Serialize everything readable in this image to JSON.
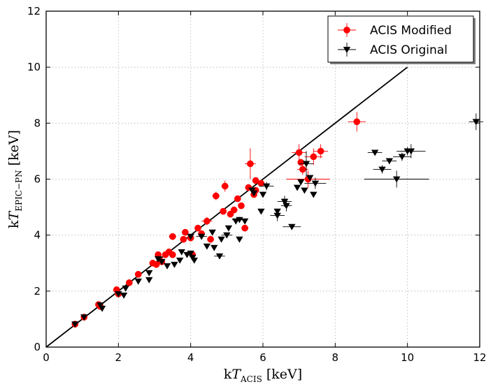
{
  "chart_data": {
    "type": "scatter",
    "title": "",
    "xlabel": {
      "prefix": "k",
      "var": "T",
      "sub": "ACIS",
      "unit": "[keV]"
    },
    "ylabel": {
      "prefix": "k",
      "var": "T",
      "sub": "EPIC−PN",
      "unit": "[keV]"
    },
    "xlim": [
      0,
      12
    ],
    "ylim": [
      0,
      12
    ],
    "xticks": [
      0,
      2,
      4,
      6,
      8,
      10,
      12
    ],
    "yticks": [
      0,
      2,
      4,
      6,
      8,
      10,
      12
    ],
    "grid": true,
    "legend_position": "top-right",
    "reference_line": {
      "name": "one-to-one line",
      "x": [
        0,
        10
      ],
      "y": [
        0,
        10
      ],
      "color": "#000000"
    },
    "series": [
      {
        "name": "ACIS Modified",
        "marker": "circle",
        "color": "#ff0000",
        "points": [
          {
            "x": 0.8,
            "y": 0.82
          },
          {
            "x": 1.05,
            "y": 1.07
          },
          {
            "x": 1.45,
            "y": 1.52
          },
          {
            "x": 1.5,
            "y": 1.45
          },
          {
            "x": 1.95,
            "y": 2.05
          },
          {
            "x": 2.0,
            "y": 1.9
          },
          {
            "x": 2.3,
            "y": 2.3
          },
          {
            "x": 2.55,
            "y": 2.6
          },
          {
            "x": 2.95,
            "y": 3.0
          },
          {
            "x": 3.05,
            "y": 2.95
          },
          {
            "x": 3.1,
            "y": 3.3
          },
          {
            "x": 3.2,
            "y": 3.05
          },
          {
            "x": 3.3,
            "y": 3.3
          },
          {
            "x": 3.4,
            "y": 3.4
          },
          {
            "x": 3.5,
            "y": 3.95,
            "xerr": 0.1,
            "yerr": 0.1
          },
          {
            "x": 3.5,
            "y": 3.3
          },
          {
            "x": 3.8,
            "y": 3.85
          },
          {
            "x": 3.85,
            "y": 4.1
          },
          {
            "x": 4.0,
            "y": 3.9
          },
          {
            "x": 4.05,
            "y": 3.3
          },
          {
            "x": 4.2,
            "y": 4.25
          },
          {
            "x": 4.3,
            "y": 4.05
          },
          {
            "x": 4.45,
            "y": 4.5,
            "xerr": 0.15,
            "yerr": 0.15
          },
          {
            "x": 4.55,
            "y": 3.85
          },
          {
            "x": 4.7,
            "y": 5.4,
            "xerr": 0.1,
            "yerr": 0.15
          },
          {
            "x": 4.9,
            "y": 4.85
          },
          {
            "x": 4.95,
            "y": 5.75,
            "xerr": 0.1,
            "yerr": 0.2
          },
          {
            "x": 5.1,
            "y": 4.75
          },
          {
            "x": 5.2,
            "y": 4.9
          },
          {
            "x": 5.3,
            "y": 5.3
          },
          {
            "x": 5.4,
            "y": 5.05
          },
          {
            "x": 5.5,
            "y": 4.25,
            "xerr": 0.1,
            "yerr": 0.1
          },
          {
            "x": 5.6,
            "y": 5.7
          },
          {
            "x": 5.65,
            "y": 6.55,
            "xerr": 0.15,
            "yerr": 0.55
          },
          {
            "x": 5.75,
            "y": 5.45
          },
          {
            "x": 5.8,
            "y": 5.6
          },
          {
            "x": 5.8,
            "y": 5.95
          },
          {
            "x": 5.95,
            "y": 5.85
          },
          {
            "x": 7.0,
            "y": 6.95,
            "xerr": 0.2,
            "yerr": 0.3
          },
          {
            "x": 7.05,
            "y": 6.6
          },
          {
            "x": 7.1,
            "y": 6.35,
            "xerr": 0.15,
            "yerr": 0.2
          },
          {
            "x": 7.25,
            "y": 6.0,
            "xerr": 0.6,
            "yerr": 0.3
          },
          {
            "x": 7.4,
            "y": 6.8,
            "xerr": 0.25,
            "yerr": 0.3
          },
          {
            "x": 7.6,
            "y": 7.0,
            "xerr": 0.2,
            "yerr": 0.25
          },
          {
            "x": 8.6,
            "y": 8.05,
            "xerr": 0.25,
            "yerr": 0.35
          }
        ]
      },
      {
        "name": "ACIS Original",
        "marker": "triangle_down",
        "color": "#000000",
        "points": [
          {
            "x": 0.8,
            "y": 0.82
          },
          {
            "x": 1.05,
            "y": 1.07
          },
          {
            "x": 1.5,
            "y": 1.5
          },
          {
            "x": 1.55,
            "y": 1.38
          },
          {
            "x": 2.0,
            "y": 1.9
          },
          {
            "x": 2.15,
            "y": 1.85
          },
          {
            "x": 2.2,
            "y": 2.1
          },
          {
            "x": 2.55,
            "y": 2.35
          },
          {
            "x": 2.85,
            "y": 2.65
          },
          {
            "x": 2.85,
            "y": 2.4
          },
          {
            "x": 3.1,
            "y": 3.15
          },
          {
            "x": 3.2,
            "y": 3.05
          },
          {
            "x": 3.35,
            "y": 2.9
          },
          {
            "x": 3.55,
            "y": 2.95
          },
          {
            "x": 3.7,
            "y": 3.1
          },
          {
            "x": 3.75,
            "y": 3.4
          },
          {
            "x": 3.9,
            "y": 3.3
          },
          {
            "x": 4.0,
            "y": 3.95
          },
          {
            "x": 4.0,
            "y": 3.35
          },
          {
            "x": 4.05,
            "y": 3.2
          },
          {
            "x": 4.1,
            "y": 3.1
          },
          {
            "x": 4.3,
            "y": 3.95,
            "xerr": 0.15,
            "yerr": 0.1
          },
          {
            "x": 4.45,
            "y": 3.6
          },
          {
            "x": 4.6,
            "y": 4.1
          },
          {
            "x": 4.65,
            "y": 3.55
          },
          {
            "x": 4.8,
            "y": 3.25,
            "xerr": 0.15,
            "yerr": 0.1
          },
          {
            "x": 4.85,
            "y": 3.85
          },
          {
            "x": 5.0,
            "y": 4.0,
            "xerr": 0.15,
            "yerr": 0.1
          },
          {
            "x": 5.05,
            "y": 4.25
          },
          {
            "x": 5.25,
            "y": 4.5
          },
          {
            "x": 5.35,
            "y": 3.85
          },
          {
            "x": 5.35,
            "y": 4.55,
            "xerr": 0.2,
            "yerr": 0.1
          },
          {
            "x": 5.5,
            "y": 4.5
          },
          {
            "x": 5.7,
            "y": 5.6
          },
          {
            "x": 5.75,
            "y": 5.5
          },
          {
            "x": 5.95,
            "y": 4.85
          },
          {
            "x": 6.0,
            "y": 5.45
          },
          {
            "x": 6.1,
            "y": 5.75,
            "xerr": 0.2,
            "yerr": 0.15
          },
          {
            "x": 6.4,
            "y": 4.85
          },
          {
            "x": 6.4,
            "y": 4.7,
            "xerr": 0.2,
            "yerr": 0.2
          },
          {
            "x": 6.6,
            "y": 5.2,
            "xerr": 0.2,
            "yerr": 0.2
          },
          {
            "x": 6.65,
            "y": 5.05,
            "xerr": 0.15,
            "yerr": 0.2
          },
          {
            "x": 6.8,
            "y": 4.3,
            "xerr": 0.25,
            "yerr": 0.1
          },
          {
            "x": 6.95,
            "y": 5.7
          },
          {
            "x": 7.05,
            "y": 5.9
          },
          {
            "x": 7.15,
            "y": 5.6
          },
          {
            "x": 7.2,
            "y": 6.55,
            "xerr": 0.2,
            "yerr": 0.45
          },
          {
            "x": 7.3,
            "y": 6.05
          },
          {
            "x": 7.4,
            "y": 5.45
          },
          {
            "x": 7.45,
            "y": 5.85,
            "xerr": 0.3,
            "yerr": 0.2
          },
          {
            "x": 9.1,
            "y": 6.95,
            "xerr": 0.2,
            "yerr": 0.1
          },
          {
            "x": 9.3,
            "y": 6.35,
            "xerr": 0.25,
            "yerr": 0.15
          },
          {
            "x": 9.5,
            "y": 6.65,
            "xerr": 0.2,
            "yerr": 0.1
          },
          {
            "x": 9.7,
            "y": 6.0,
            "xerr": 0.9,
            "yerr": 0.3
          },
          {
            "x": 9.85,
            "y": 6.8,
            "xerr": 0.25,
            "yerr": 0.15
          },
          {
            "x": 10.0,
            "y": 7.0,
            "xerr": 0.2,
            "yerr": 0.15
          },
          {
            "x": 10.1,
            "y": 7.0,
            "xerr": 0.4,
            "yerr": 0.25
          },
          {
            "x": 11.9,
            "y": 8.05,
            "xerr": 0.2,
            "yerr": 0.3
          }
        ]
      }
    ]
  }
}
